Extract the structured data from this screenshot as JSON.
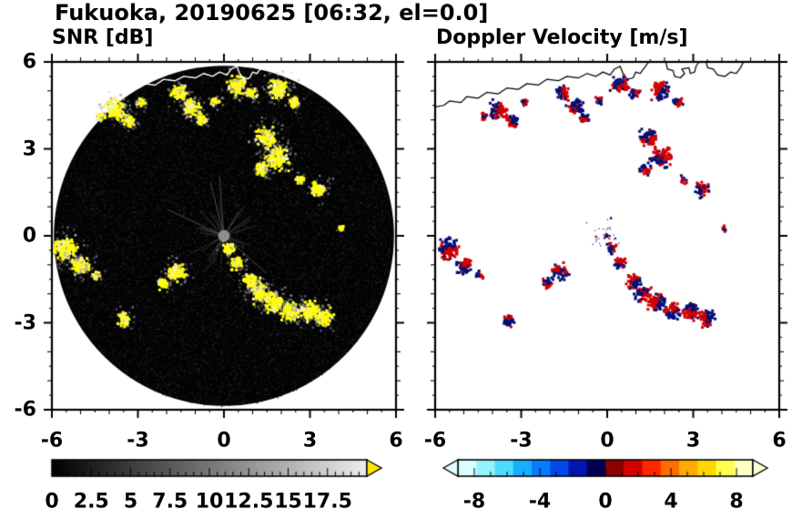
{
  "title": "Fukuoka, 20190625 [06:32, el=0.0]",
  "chart_data": {
    "type": "heatmap",
    "x_range": [
      -6,
      6
    ],
    "y_range": [
      -6,
      6
    ],
    "scan_radius": 5.93,
    "panels": [
      {
        "title": "SNR [dB]",
        "x_ticks": [
          -6,
          -3,
          0,
          3,
          6
        ],
        "x_tick_labels": [
          "-6",
          "-3",
          "0",
          "3",
          "6"
        ],
        "y_ticks": [
          6,
          3,
          0,
          -3,
          -6
        ],
        "y_tick_labels": [
          "6",
          "3",
          "0",
          "-3",
          "-6"
        ],
        "background_color": "#000000",
        "echo_palette": [
          "#ffff00",
          "#ffef60",
          "#f2f2c4",
          "#b0b0b0"
        ],
        "colorbar": {
          "min": 0,
          "max": 20,
          "tick_values": [
            0,
            2.5,
            5,
            7.5,
            10,
            12.5,
            15,
            17.5
          ],
          "labels": [
            "0",
            "2.5",
            "5",
            "7.5",
            "10",
            "12.5",
            "15",
            "17.5"
          ],
          "colormap": "black-to-white",
          "over_arrow_color": "#ffe800"
        }
      },
      {
        "title": "Doppler Velocity [m/s]",
        "x_ticks": [
          -6,
          -3,
          0,
          3,
          6
        ],
        "x_tick_labels": [
          "-6",
          "-3",
          "0",
          "3",
          "6"
        ],
        "background_color": "#ffffff",
        "echo_colors": [
          "#d40000",
          "#001078"
        ],
        "colorbar": {
          "min": -9,
          "max": 9,
          "tick_values": [
            -8,
            -4,
            0,
            4,
            8
          ],
          "labels": [
            "-8",
            "-4",
            "0",
            "4",
            "8"
          ],
          "neg_colors": [
            "#d8ffff",
            "#96f2ff",
            "#4cdcff",
            "#14b0ff",
            "#087cff",
            "#0048e8",
            "#0016b0",
            "#000054"
          ],
          "pos_colors": [
            "#8c0000",
            "#d40000",
            "#ff2600",
            "#ff6c00",
            "#ffaa00",
            "#ffd800",
            "#ffff4c",
            "#ffffc2"
          ],
          "under_arrow_color": "#e4ffff",
          "over_arrow_color": "#ffffd2"
        }
      }
    ],
    "echo_cells": [
      {
        "x": -3.8,
        "y": 4.35,
        "r": 0.45
      },
      {
        "x": -3.3,
        "y": 3.95,
        "r": 0.3
      },
      {
        "x": -4.3,
        "y": 4.1,
        "r": 0.2
      },
      {
        "x": -2.9,
        "y": 4.6,
        "r": 0.2
      },
      {
        "x": -1.55,
        "y": 4.95,
        "r": 0.35
      },
      {
        "x": -1.15,
        "y": 4.45,
        "r": 0.4
      },
      {
        "x": -0.8,
        "y": 4.05,
        "r": 0.25
      },
      {
        "x": -0.3,
        "y": 4.65,
        "r": 0.2
      },
      {
        "x": 0.45,
        "y": 5.2,
        "r": 0.4
      },
      {
        "x": 0.95,
        "y": 4.9,
        "r": 0.25
      },
      {
        "x": 1.9,
        "y": 5.05,
        "r": 0.45
      },
      {
        "x": 2.45,
        "y": 4.6,
        "r": 0.25
      },
      {
        "x": 1.45,
        "y": 3.4,
        "r": 0.45
      },
      {
        "x": 1.85,
        "y": 2.7,
        "r": 0.5
      },
      {
        "x": 1.35,
        "y": 2.3,
        "r": 0.3
      },
      {
        "x": 2.65,
        "y": 1.95,
        "r": 0.2
      },
      {
        "x": 3.3,
        "y": 1.6,
        "r": 0.35
      },
      {
        "x": 4.1,
        "y": 0.25,
        "r": 0.15
      },
      {
        "x": 0.15,
        "y": -0.45,
        "r": 0.25
      },
      {
        "x": 0.45,
        "y": -0.95,
        "r": 0.3
      },
      {
        "x": -5.55,
        "y": -0.45,
        "r": 0.5
      },
      {
        "x": -5.0,
        "y": -1.05,
        "r": 0.4
      },
      {
        "x": -4.45,
        "y": -1.35,
        "r": 0.2
      },
      {
        "x": -1.65,
        "y": -1.25,
        "r": 0.4
      },
      {
        "x": -2.1,
        "y": -1.65,
        "r": 0.25
      },
      {
        "x": 0.95,
        "y": -1.6,
        "r": 0.35
      },
      {
        "x": 1.25,
        "y": -2.0,
        "r": 0.4
      },
      {
        "x": 1.75,
        "y": -2.3,
        "r": 0.45
      },
      {
        "x": 2.3,
        "y": -2.6,
        "r": 0.4
      },
      {
        "x": 2.95,
        "y": -2.6,
        "r": 0.45
      },
      {
        "x": 3.5,
        "y": -2.85,
        "r": 0.4
      },
      {
        "x": -3.45,
        "y": -2.9,
        "r": 0.3
      }
    ],
    "coastline": [
      [
        [
          -6,
          4.45
        ],
        [
          -5.7,
          4.5
        ],
        [
          -5.5,
          4.65
        ],
        [
          -5.1,
          4.6
        ],
        [
          -4.9,
          4.8
        ],
        [
          -4.5,
          4.75
        ],
        [
          -4.2,
          4.95
        ],
        [
          -3.8,
          4.9
        ],
        [
          -3.5,
          5.1
        ],
        [
          -3.1,
          5.05
        ],
        [
          -2.8,
          5.25
        ],
        [
          -2.4,
          5.2
        ],
        [
          -2.1,
          5.4
        ],
        [
          -1.7,
          5.35
        ],
        [
          -1.4,
          5.5
        ],
        [
          -1.0,
          5.45
        ],
        [
          -0.7,
          5.6
        ],
        [
          -0.4,
          5.5
        ],
        [
          -0.15,
          5.65
        ],
        [
          0.1,
          5.55
        ],
        [
          0.25,
          5.75
        ],
        [
          0.45,
          5.85
        ],
        [
          0.55,
          5.6
        ],
        [
          0.7,
          5.4
        ],
        [
          0.9,
          5.45
        ],
        [
          1.0,
          5.65
        ],
        [
          1.15,
          5.6
        ],
        [
          1.3,
          5.8
        ],
        [
          1.45,
          6.0
        ]
      ],
      [
        [
          2.05,
          6.0
        ],
        [
          2.1,
          5.75
        ],
        [
          2.3,
          5.7
        ],
        [
          2.35,
          5.5
        ],
        [
          2.55,
          5.45
        ],
        [
          2.7,
          5.6
        ],
        [
          2.6,
          5.75
        ],
        [
          2.85,
          5.8
        ],
        [
          2.9,
          5.6
        ],
        [
          3.05,
          5.65
        ],
        [
          3.1,
          5.85
        ],
        [
          3.2,
          6.0
        ]
      ],
      [
        [
          3.45,
          6.0
        ],
        [
          3.5,
          5.8
        ],
        [
          3.7,
          5.75
        ],
        [
          3.85,
          5.55
        ],
        [
          4.1,
          5.5
        ],
        [
          4.3,
          5.65
        ],
        [
          4.5,
          5.6
        ],
        [
          4.65,
          5.8
        ],
        [
          4.75,
          6.0
        ]
      ]
    ]
  }
}
